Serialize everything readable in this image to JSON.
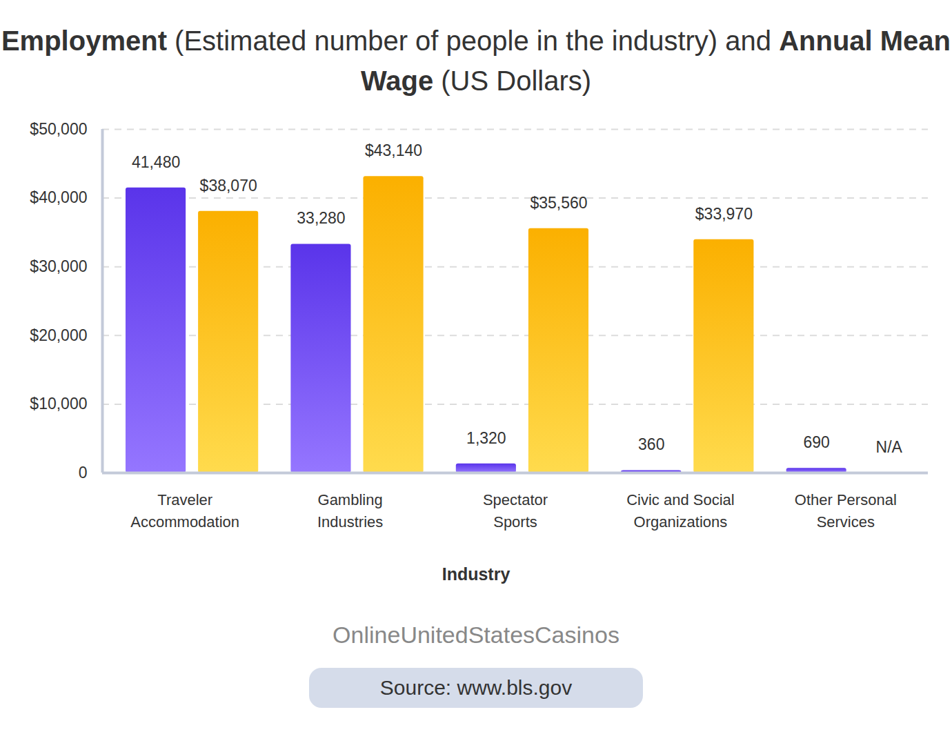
{
  "chart_data": {
    "type": "bar",
    "title": "Employment (Estimated number of people in the industry) and Annual Mean Wage (US Dollars)",
    "x_label": "Industry",
    "categories": [
      "Traveler Accommodation",
      "Gambling Industries",
      "Spectator Sports",
      "Civic and Social Organizations",
      "Other Personal Services"
    ],
    "series": [
      {
        "name": "Employment",
        "color": "#5a34ea",
        "values": [
          41480,
          33280,
          1320,
          360,
          690
        ],
        "value_labels": [
          "41,480",
          "33,280",
          "1,320",
          "360",
          "690"
        ]
      },
      {
        "name": "Annual Mean Wage",
        "color": "#fbb000",
        "values": [
          38070,
          43140,
          35560,
          33970,
          null
        ],
        "value_labels": [
          "$38,070",
          "$43,140",
          "$35,560",
          "$33,970",
          "N/A"
        ]
      }
    ],
    "ylim": [
      0,
      50000
    ],
    "yticks": [
      0,
      {
        "value": 10000,
        "label": "$10,000"
      },
      {
        "value": 20000,
        "label": "$20,000"
      },
      {
        "value": 30000,
        "label": "$30,000"
      },
      {
        "value": 40000,
        "label": "$40,000"
      },
      {
        "value": 50000,
        "label": "$50,000"
      }
    ],
    "grid": true,
    "data_labels": true,
    "caption": "OnlineUnitedStatesCasinos",
    "source": "Source: www.bls.gov"
  }
}
